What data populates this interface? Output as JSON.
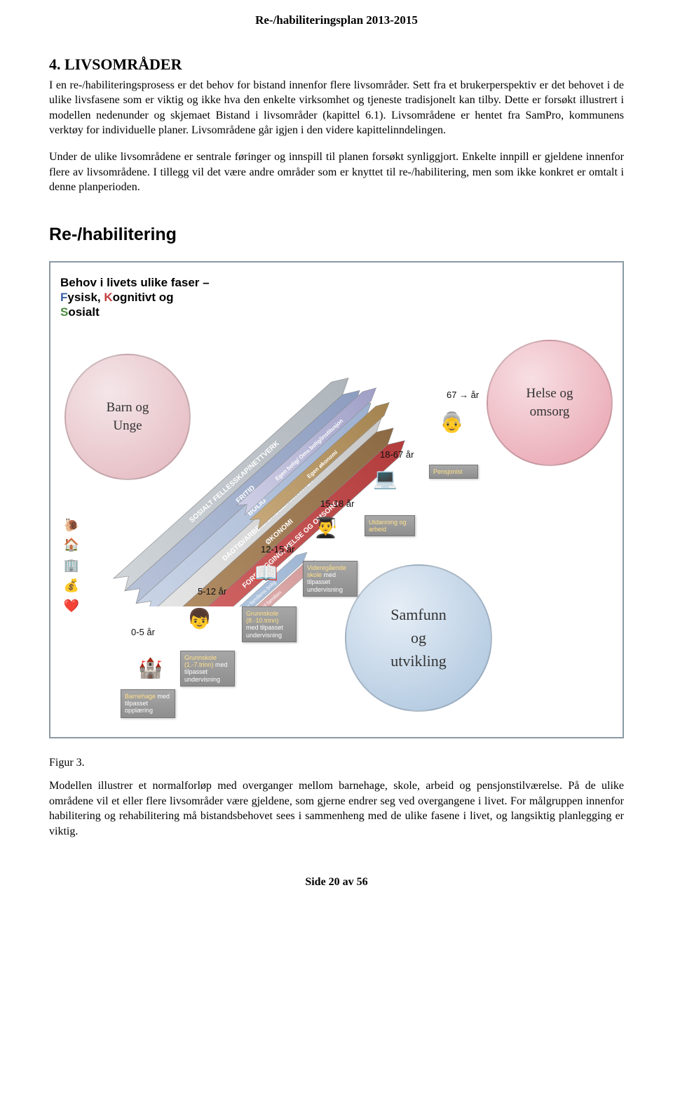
{
  "header": "Re-/habiliteringsplan 2013-2015",
  "section_heading": "4.    LIVSOMRÅDER",
  "para1": "I en re-/habiliteringsprosess er det behov for bistand innenfor flere livsområder. Sett fra et brukerperspektiv er det behovet i de ulike livsfasene som er viktig og ikke hva den enkelte virksomhet og tjeneste tradisjonelt kan tilby. Dette er forsøkt illustrert i modellen nedenunder og skjemaet Bistand i livsområder (kapittel 6.1). Livsområdene er hentet fra SamPro, kommunens verktøy for individuelle planer. Livsområdene går igjen i den videre kapittelinndelingen.",
  "para2": "Under de ulike livsområdene er sentrale føringer og innspill til planen forsøkt synliggjort. Enkelte innpill er gjeldene innenfor flere av livsområdene. I tillegg vil det være andre områder som er knyttet til re-/habilitering, men som ikke konkret er omtalt i denne planperioden.",
  "diagram": {
    "title": "Re-/habilitering",
    "faser_line1": "Behov i livets ulike faser –",
    "faser_f": "F",
    "faser_fysisk": "ysisk, ",
    "faser_k": "K",
    "faser_kognitivt": "ognitivt og",
    "faser_s": "S",
    "faser_sosialt": "osialt",
    "circle_barn": "Barn og\nUnge",
    "circle_helse": "Helse og\nomsorg",
    "circle_samfunn": "Samfunn\nog\nutvikling",
    "arrows": [
      {
        "label": "SOSIALT FELLESSKAP/NETTVERK",
        "color1": "#d0d5d9",
        "color2": "#aeb5bb"
      },
      {
        "label": "FRITID",
        "color1": "#b8c3d9",
        "color2": "#8d9dc0"
      },
      {
        "label": "BOLIG",
        "color1": "#c9d4e6",
        "color2": "#9db0cf"
      },
      {
        "label": "DAGTID/ARBEID/SKOLE/AKTIVITET",
        "color1": "#e6e6e6",
        "color2": "#c8c8c8"
      },
      {
        "label": "ØKONOMI",
        "color1": "#b59068",
        "color2": "#8c6a44"
      },
      {
        "label": "FOREBYGGING, HELSE OG OMSORG",
        "color1": "#d46a6a",
        "color2": "#b23b3b"
      },
      {
        "label": "Egen bolig/ Oms.bolig/institusjon",
        "color1": "#cfcfe6",
        "color2": "#9f9fc7"
      },
      {
        "label": "Egen økonomi",
        "color1": "#c6a87a",
        "color2": "#a3834f"
      }
    ],
    "sub_arrows": [
      {
        "label": "Tilrettelegging av familiens bolig",
        "color": "#9fb6d4"
      },
      {
        "label": "Økonomisk bistand  til familien",
        "color": "#d49a9a"
      }
    ],
    "ages": {
      "a05": "0-5 år",
      "a512": "5-12 år",
      "a1215": "12-15 år",
      "a1518": "15-18 år",
      "a1867": "18-67 år",
      "a67": "67 → år"
    },
    "stages": {
      "barnehage": {
        "hl": "Barnehage",
        "rest": " med tilpasset opplæring"
      },
      "grunnskole1": {
        "hl": "Grunnskole (1.-7.trinn)",
        "rest": " med tilpasset undervisning"
      },
      "grunnskole2": {
        "hl": "Grunnskole (8.-10.trinn)",
        "rest": " med tilpasset undervisning"
      },
      "videregaende": {
        "hl": "Videregående skole",
        "rest": " med tilpasset undervisning"
      },
      "utdanning": {
        "hl": "Utdanning og arbeid",
        "rest": ""
      },
      "pensjonist": {
        "hl": "Pensjonist",
        "rest": ""
      }
    }
  },
  "figure_caption": "Figur 3.",
  "figure_desc": "Modellen illustrer et normalforløp med overganger mellom barnehage, skole, arbeid og pensjonstilværelse. På de ulike områdene vil et eller flere livsområder være gjeldene, som gjerne endrer seg ved overgangene i livet. For målgruppen innenfor habilitering og rehabilitering må bistandsbehovet sees i sammenheng med de ulike fasene i livet, og langsiktig planlegging er viktig.",
  "footer": "Side 20 av 56"
}
